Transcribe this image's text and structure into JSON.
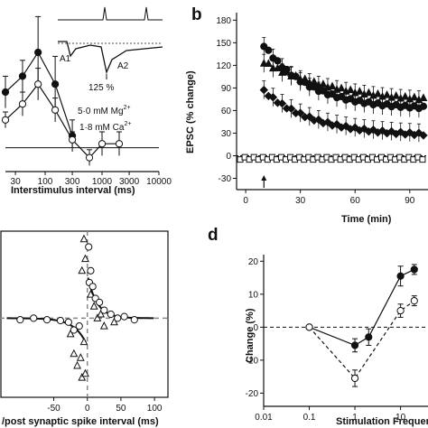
{
  "panels": {
    "a": {
      "label": "",
      "xlabel": "Interstimulus interval (ms)",
      "xticks": [
        "30",
        "100",
        "300",
        "1000",
        "3000",
        "10000"
      ],
      "annotations": {
        "mg": "5·0 mM Mg",
        "mg_sup": "2+",
        "ca": "1·8 mM Ca",
        "ca_sup": "2+",
        "inset_a1": "A1",
        "inset_a2": "A2",
        "inset_pct": "125 %"
      }
    },
    "b": {
      "label": "b",
      "ylabel": "EPSC (% change)",
      "xlabel": "Time (min)",
      "yticks": [
        "180",
        "150",
        "120",
        "90",
        "60",
        "30",
        "0",
        "-30"
      ],
      "xticks": [
        "0",
        "30",
        "60",
        "90"
      ]
    },
    "c": {
      "label": "",
      "xlabel": "/post synaptic spike interval (ms)",
      "xticks": [
        "-50",
        "0",
        "50",
        "100"
      ]
    },
    "d": {
      "label": "d",
      "ylabel": "Change (%)",
      "xlabel": "Stimulation Frequency",
      "yticks": [
        "20",
        "10",
        "0",
        "-10",
        "-20"
      ],
      "xticks": [
        "0.01",
        "0.1",
        "1",
        "10"
      ]
    }
  },
  "chart_data": [
    {
      "panel": "a",
      "type": "line",
      "x_scale": "log",
      "xlim": [
        20,
        10000
      ],
      "ylim": [
        -60,
        340
      ],
      "series": [
        {
          "marker": "filled",
          "x": [
            20,
            40,
            75,
            150,
            300
          ],
          "y": [
            140,
            180,
            240,
            160,
            30
          ],
          "err": [
            40,
            40,
            90,
            70,
            40
          ]
        },
        {
          "marker": "open",
          "x": [
            20,
            40,
            75,
            150,
            300,
            600,
            1000,
            2000
          ],
          "y": [
            70,
            110,
            160,
            95,
            20,
            -25,
            10,
            10
          ],
          "err": [
            20,
            30,
            40,
            30,
            20,
            20,
            30,
            30
          ]
        }
      ],
      "baseline": 0
    },
    {
      "panel": "b",
      "type": "scatter",
      "xlim": [
        -5,
        100
      ],
      "ylim": [
        -45,
        190
      ],
      "ticks_y": [
        -30,
        0,
        30,
        60,
        90,
        120,
        150,
        180
      ],
      "ticks_x": [
        0,
        30,
        60,
        90
      ],
      "arrow_x": 10,
      "series": [
        {
          "marker": "triangle-filled",
          "x0": 10,
          "y0": 130,
          "decay": 55,
          "tau": 40,
          "plateau": 70
        },
        {
          "marker": "circle-filled",
          "x0": 10,
          "y0": 160,
          "decay": 85,
          "tau": 25,
          "plateau": 60
        },
        {
          "marker": "diamond-filled",
          "x0": 10,
          "y0": 90,
          "decay": 60,
          "tau": 28,
          "plateau": 25
        },
        {
          "marker": "square-open",
          "x0": -3,
          "y0": 0,
          "decay": 0,
          "tau": 1,
          "plateau": -5
        }
      ]
    },
    {
      "panel": "c",
      "type": "scatter",
      "xlim": [
        -130,
        120
      ],
      "ylim": [
        -100,
        110
      ],
      "points_triangle": [
        [
          -5,
          100
        ],
        [
          -3,
          75
        ],
        [
          -8,
          60
        ],
        [
          5,
          30
        ],
        [
          10,
          15
        ],
        [
          15,
          0
        ],
        [
          -5,
          -30
        ],
        [
          -10,
          -50
        ],
        [
          -15,
          -60
        ],
        [
          -20,
          -45
        ],
        [
          -8,
          -75
        ],
        [
          -3,
          -70
        ],
        [
          20,
          5
        ],
        [
          25,
          -10
        ],
        [
          40,
          -5
        ],
        [
          -25,
          -20
        ]
      ],
      "points_circle": [
        [
          2,
          90
        ],
        [
          5,
          60
        ],
        [
          3,
          45
        ],
        [
          8,
          40
        ],
        [
          12,
          25
        ],
        [
          18,
          20
        ],
        [
          25,
          10
        ],
        [
          35,
          5
        ],
        [
          45,
          0
        ],
        [
          55,
          2
        ],
        [
          70,
          -2
        ],
        [
          -12,
          -10
        ],
        [
          -20,
          -15
        ],
        [
          -28,
          -5
        ],
        [
          -40,
          -3
        ],
        [
          -60,
          -2
        ],
        [
          -80,
          0
        ],
        [
          -100,
          -2
        ]
      ],
      "curve_pos": {
        "a": 55,
        "tau": 14
      },
      "curve_neg": {
        "a": -35,
        "tau": 18
      }
    },
    {
      "panel": "d",
      "type": "line",
      "x_scale": "log",
      "xlim": [
        0.01,
        40
      ],
      "ylim": [
        -24,
        22
      ],
      "series": [
        {
          "marker": "filled",
          "x": [
            0.1,
            1,
            2,
            10,
            20
          ],
          "y": [
            0,
            -5.5,
            -3,
            15.5,
            17.5
          ],
          "err": [
            0.3,
            2,
            2.5,
            3,
            1.5
          ]
        },
        {
          "marker": "open",
          "x": [
            0.1,
            1,
            10,
            20
          ],
          "y": [
            0,
            -15.5,
            5,
            8
          ],
          "err": [
            0.3,
            2.5,
            2,
            1.5
          ]
        }
      ]
    }
  ]
}
